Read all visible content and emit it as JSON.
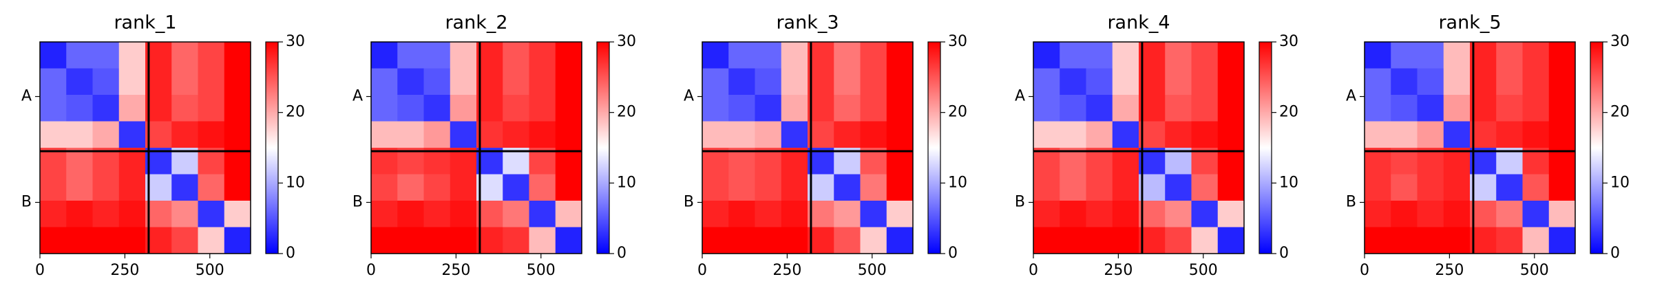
{
  "chart_data": [
    {
      "type": "heatmap",
      "title": "rank_1",
      "xlim": [
        0,
        620
      ],
      "ylim": [
        620,
        0
      ],
      "xticks": [
        0,
        250,
        500
      ],
      "yticks": [
        {
          "value": 160,
          "label": "A"
        },
        {
          "value": 470,
          "label": "B"
        }
      ],
      "chain_break": 320,
      "colormap": [
        "#0000ff",
        "#ffffff",
        "#ff0000"
      ],
      "zlim": [
        0,
        30
      ],
      "zticks": [
        0,
        10,
        20,
        30
      ],
      "matrix": [
        [
          2,
          6,
          6,
          18,
          28,
          24,
          26,
          30
        ],
        [
          6,
          3,
          5,
          18,
          28,
          24,
          26,
          30
        ],
        [
          6,
          5,
          3,
          20,
          28,
          25,
          26,
          30
        ],
        [
          18,
          18,
          20,
          3,
          26,
          28,
          29,
          30
        ],
        [
          26,
          24,
          26,
          28,
          3,
          12,
          26,
          30
        ],
        [
          26,
          24,
          26,
          28,
          12,
          3,
          24,
          30
        ],
        [
          28,
          29,
          28,
          29,
          24,
          22,
          3,
          18
        ],
        [
          30,
          30,
          30,
          30,
          28,
          26,
          18,
          2
        ]
      ]
    },
    {
      "type": "heatmap",
      "title": "rank_2",
      "xlim": [
        0,
        620
      ],
      "ylim": [
        620,
        0
      ],
      "xticks": [
        0,
        250,
        500
      ],
      "yticks": [
        {
          "value": 160,
          "label": "A"
        },
        {
          "value": 470,
          "label": "B"
        }
      ],
      "chain_break": 320,
      "colormap": [
        "#0000ff",
        "#ffffff",
        "#ff0000"
      ],
      "zlim": [
        0,
        30
      ],
      "zticks": [
        0,
        10,
        20,
        30
      ],
      "matrix": [
        [
          2,
          6,
          6,
          19,
          28,
          25,
          27,
          30
        ],
        [
          6,
          3,
          5,
          19,
          28,
          25,
          27,
          30
        ],
        [
          6,
          5,
          3,
          21,
          28,
          26,
          27,
          30
        ],
        [
          19,
          19,
          21,
          3,
          27,
          28,
          29,
          30
        ],
        [
          27,
          26,
          27,
          28,
          3,
          13,
          26,
          30
        ],
        [
          26,
          24,
          26,
          28,
          13,
          3,
          24,
          30
        ],
        [
          28,
          29,
          28,
          29,
          25,
          23,
          3,
          19
        ],
        [
          30,
          30,
          30,
          30,
          28,
          27,
          19,
          2
        ]
      ]
    },
    {
      "type": "heatmap",
      "title": "rank_3",
      "xlim": [
        0,
        620
      ],
      "ylim": [
        620,
        0
      ],
      "xticks": [
        0,
        250,
        500
      ],
      "yticks": [
        {
          "value": 160,
          "label": "A"
        },
        {
          "value": 470,
          "label": "B"
        }
      ],
      "chain_break": 320,
      "colormap": [
        "#0000ff",
        "#ffffff",
        "#ff0000"
      ],
      "zlim": [
        0,
        30
      ],
      "zticks": [
        0,
        10,
        20,
        30
      ],
      "matrix": [
        [
          2,
          6,
          6,
          19,
          27,
          23,
          26,
          30
        ],
        [
          6,
          3,
          5,
          19,
          27,
          23,
          26,
          30
        ],
        [
          6,
          5,
          3,
          20,
          27,
          24,
          26,
          30
        ],
        [
          19,
          19,
          20,
          3,
          26,
          28,
          29,
          30
        ],
        [
          26,
          25,
          26,
          28,
          3,
          12,
          25,
          30
        ],
        [
          26,
          25,
          26,
          28,
          12,
          3,
          23,
          30
        ],
        [
          28,
          29,
          28,
          29,
          23,
          21,
          3,
          18
        ],
        [
          30,
          30,
          30,
          30,
          28,
          25,
          18,
          2
        ]
      ]
    },
    {
      "type": "heatmap",
      "title": "rank_4",
      "xlim": [
        0,
        620
      ],
      "ylim": [
        620,
        0
      ],
      "xticks": [
        0,
        250,
        500
      ],
      "yticks": [
        {
          "value": 160,
          "label": "A"
        },
        {
          "value": 470,
          "label": "B"
        }
      ],
      "chain_break": 320,
      "colormap": [
        "#0000ff",
        "#ffffff",
        "#ff0000"
      ],
      "zlim": [
        0,
        30
      ],
      "zticks": [
        0,
        10,
        20,
        30
      ],
      "matrix": [
        [
          2,
          6,
          6,
          18,
          28,
          24,
          26,
          30
        ],
        [
          6,
          3,
          5,
          18,
          28,
          24,
          26,
          30
        ],
        [
          6,
          5,
          3,
          20,
          28,
          25,
          26,
          30
        ],
        [
          18,
          18,
          20,
          3,
          26,
          28,
          29,
          30
        ],
        [
          26,
          24,
          26,
          28,
          3,
          11,
          26,
          30
        ],
        [
          26,
          24,
          26,
          28,
          11,
          3,
          24,
          30
        ],
        [
          28,
          29,
          28,
          29,
          24,
          22,
          3,
          18
        ],
        [
          30,
          30,
          30,
          30,
          28,
          26,
          18,
          2
        ]
      ]
    },
    {
      "type": "heatmap",
      "title": "rank_5",
      "xlim": [
        0,
        620
      ],
      "ylim": [
        620,
        0
      ],
      "xticks": [
        0,
        250,
        500
      ],
      "yticks": [
        {
          "value": 160,
          "label": "A"
        },
        {
          "value": 470,
          "label": "B"
        }
      ],
      "chain_break": 320,
      "colormap": [
        "#0000ff",
        "#ffffff",
        "#ff0000"
      ],
      "zlim": [
        0,
        30
      ],
      "zticks": [
        0,
        10,
        20,
        30
      ],
      "matrix": [
        [
          2,
          6,
          6,
          19,
          28,
          25,
          27,
          30
        ],
        [
          6,
          3,
          5,
          19,
          28,
          25,
          27,
          30
        ],
        [
          6,
          5,
          3,
          21,
          28,
          26,
          27,
          30
        ],
        [
          19,
          19,
          21,
          3,
          27,
          28,
          29,
          30
        ],
        [
          27,
          26,
          27,
          28,
          3,
          12,
          27,
          30
        ],
        [
          27,
          25,
          27,
          28,
          12,
          3,
          25,
          30
        ],
        [
          28,
          29,
          28,
          29,
          25,
          23,
          3,
          19
        ],
        [
          30,
          30,
          30,
          30,
          28,
          27,
          19,
          2
        ]
      ]
    }
  ]
}
